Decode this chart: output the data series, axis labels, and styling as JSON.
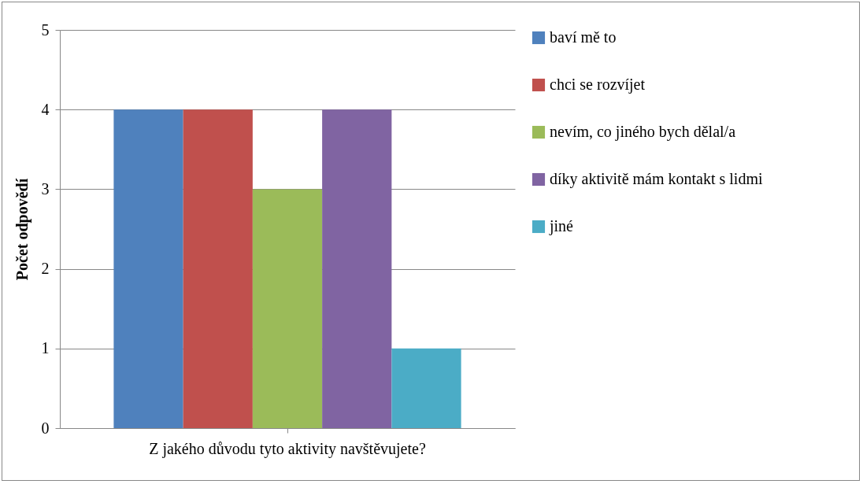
{
  "chart_data": {
    "type": "bar",
    "ylabel": "Počet odpovědí",
    "categories": [
      "Z jakého důvodu tyto aktivity navštěvujete?"
    ],
    "series": [
      {
        "name": "baví mě to",
        "color": "#4f81bd",
        "values": [
          4
        ]
      },
      {
        "name": "chci se rozvíjet",
        "color": "#c0504d",
        "values": [
          4
        ]
      },
      {
        "name": "nevím, co jiného bych dělal/a",
        "color": "#9bbb59",
        "values": [
          3
        ]
      },
      {
        "name": "díky aktivitě mám kontakt s lidmi",
        "color": "#8064a2",
        "values": [
          4
        ]
      },
      {
        "name": "jiné",
        "color": "#4bacc6",
        "values": [
          1
        ]
      }
    ],
    "ylim": [
      0,
      5
    ],
    "yticks": [
      0,
      1,
      2,
      3,
      4,
      5
    ],
    "grid": "y",
    "legend": "right"
  }
}
